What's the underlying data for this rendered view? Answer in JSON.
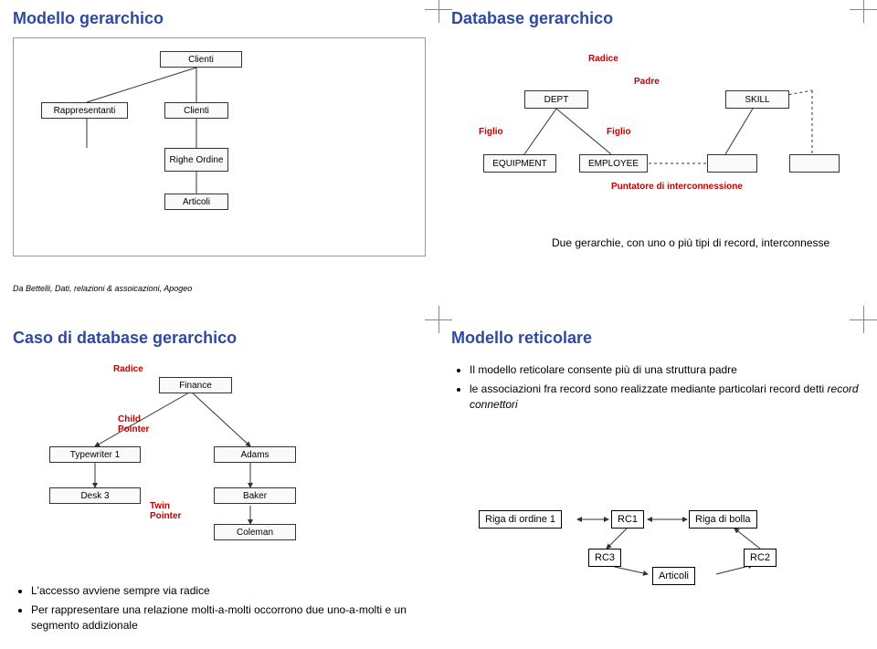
{
  "q1": {
    "title": "Modello gerarchico",
    "boxes": {
      "clienti_top": "Clienti",
      "rappresentanti": "Rappresentanti",
      "clienti_mid": "Clienti",
      "righe_ordine": "Righe Ordine",
      "articoli": "Articoli"
    },
    "caption": "Da Bettelli, Dati, relazioni & assoicazioni, Apogeo"
  },
  "q2": {
    "title": "Database gerarchico",
    "annotations": {
      "radice": "Radice",
      "padre": "Padre",
      "figlio1": "Figlio",
      "figlio2": "Figlio",
      "puntatore": "Puntatore di interconnessione"
    },
    "boxes": {
      "dept": "DEPT",
      "skill": "SKILL",
      "equipment": "EQUIPMENT",
      "employee": "EMPLOYEE",
      "emp_right": ""
    },
    "note": "Due gerarchie, con uno o più tipi di record, interconnesse"
  },
  "q3": {
    "title": "Caso di database gerarchico",
    "annotations": {
      "radice": "Radice",
      "child_ptr": "Child Pointer",
      "twin_ptr": "Twin Pointer"
    },
    "boxes": {
      "finance": "Finance",
      "typewriter": "Typewriter 1",
      "adams": "Adams",
      "desk3": "Desk 3",
      "baker": "Baker",
      "coleman": "Coleman"
    },
    "bullets": [
      "L'accesso avviene sempre via radice",
      "Per rappresentare una  relazione molti-a-molti occorrono due uno-a-molti e un segmento addizionale"
    ]
  },
  "q4": {
    "title": "Modello reticolare",
    "bullets": [
      "Il modello reticolare consente più di una struttura padre",
      "le associazioni fra record sono realizzate mediante particolari record detti record connettori"
    ],
    "rc": {
      "riga_ordine": "Riga di ordine 1",
      "rc1": "RC1",
      "riga_bolla": "Riga di bolla",
      "rc3": "RC3",
      "articoli": "Articoli",
      "rc2": "RC2"
    }
  }
}
